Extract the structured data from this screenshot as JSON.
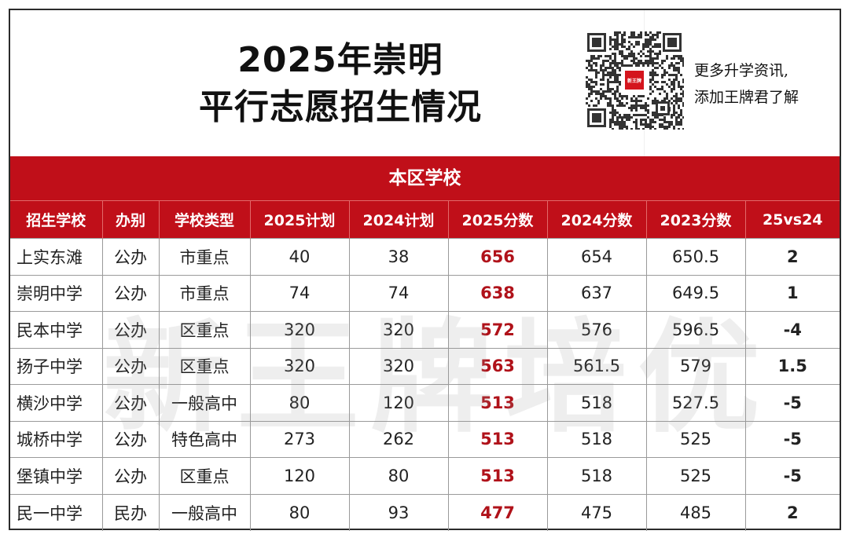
{
  "title_line1": "2025年崇明",
  "title_line2": "平行志愿招生情况",
  "promo_line1": "更多升学资讯,",
  "promo_line2": "添加王牌君了解",
  "qr_logo_text": "新王牌",
  "section_title": "本区学校",
  "watermark": "新王牌培优",
  "colors": {
    "accent_red": "#c00f19",
    "score_red": "#b0121a"
  },
  "table": {
    "headers": [
      "招生学校",
      "办别",
      "学校类型",
      "2025计划",
      "2024计划",
      "2025分数",
      "2024分数",
      "2023分数",
      "25vs24"
    ],
    "rows": [
      [
        "上实东滩",
        "公办",
        "市重点",
        "40",
        "38",
        "656",
        "654",
        "650.5",
        "2"
      ],
      [
        "崇明中学",
        "公办",
        "市重点",
        "74",
        "74",
        "638",
        "637",
        "649.5",
        "1"
      ],
      [
        "民本中学",
        "公办",
        "区重点",
        "320",
        "320",
        "572",
        "576",
        "596.5",
        "-4"
      ],
      [
        "扬子中学",
        "公办",
        "区重点",
        "320",
        "320",
        "563",
        "561.5",
        "579",
        "1.5"
      ],
      [
        "横沙中学",
        "公办",
        "一般高中",
        "80",
        "120",
        "513",
        "518",
        "527.5",
        "-5"
      ],
      [
        "城桥中学",
        "公办",
        "特色高中",
        "273",
        "262",
        "513",
        "518",
        "525",
        "-5"
      ],
      [
        "堡镇中学",
        "公办",
        "区重点",
        "120",
        "80",
        "513",
        "518",
        "525",
        "-5"
      ],
      [
        "民一中学",
        "民办",
        "一般高中",
        "80",
        "93",
        "477",
        "475",
        "485",
        "2"
      ]
    ]
  }
}
